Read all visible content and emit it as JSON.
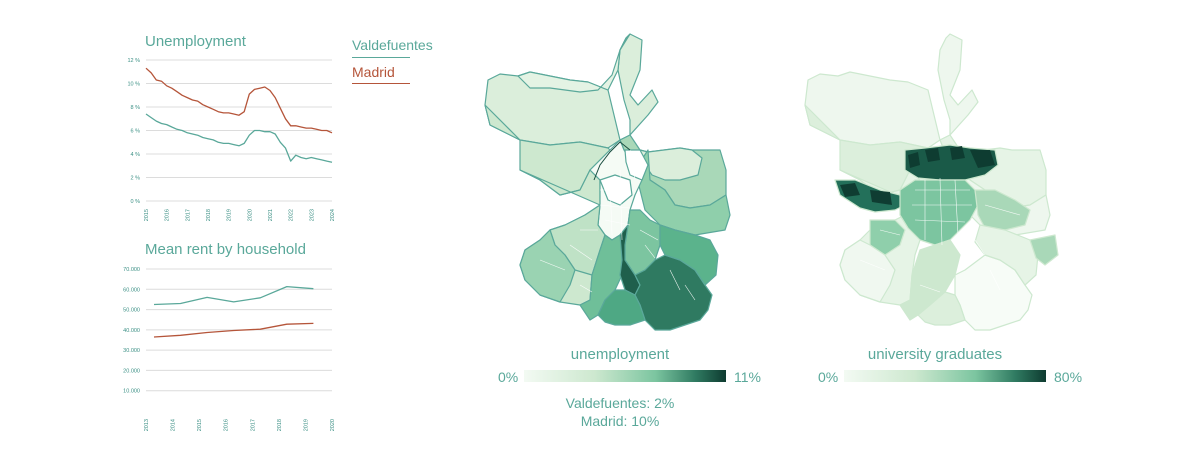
{
  "legend": {
    "entries": [
      {
        "label": "Valdefuentes",
        "color": "#5aa89a"
      },
      {
        "label": "Madrid",
        "color": "#b5553a"
      }
    ]
  },
  "chart_data": [
    {
      "type": "line",
      "title": "Unemployment",
      "x_ticks": [
        "2015",
        "2016",
        "2017",
        "2018",
        "2019",
        "2020",
        "2021",
        "2022",
        "2023",
        "2024"
      ],
      "y_ticks": [
        "0 %",
        "2 %",
        "4 %",
        "6 %",
        "8 %",
        "10 %",
        "12 %"
      ],
      "ylim": [
        0,
        12
      ],
      "xlim": [
        2015,
        2024
      ],
      "grid": true,
      "series": [
        {
          "name": "Valdefuentes",
          "color": "#5aa89a",
          "x": [
            2015,
            2015.25,
            2015.5,
            2015.75,
            2016,
            2016.25,
            2016.5,
            2016.75,
            2017,
            2017.25,
            2017.5,
            2017.75,
            2018,
            2018.25,
            2018.5,
            2018.75,
            2019,
            2019.25,
            2019.5,
            2019.75,
            2020,
            2020.25,
            2020.5,
            2020.75,
            2021,
            2021.25,
            2021.5,
            2021.75,
            2022,
            2022.25,
            2022.5,
            2022.75,
            2023,
            2023.25,
            2023.5,
            2023.75,
            2024
          ],
          "y": [
            7.4,
            7.1,
            6.8,
            6.6,
            6.5,
            6.3,
            6.1,
            6.0,
            5.8,
            5.7,
            5.6,
            5.4,
            5.3,
            5.2,
            5.0,
            4.9,
            4.9,
            4.8,
            4.7,
            4.9,
            5.6,
            6.0,
            6.0,
            5.9,
            5.9,
            5.7,
            5.0,
            4.5,
            3.4,
            3.9,
            3.7,
            3.6,
            3.7,
            3.6,
            3.5,
            3.4,
            3.3
          ]
        },
        {
          "name": "Madrid",
          "color": "#b5553a",
          "x": [
            2015,
            2015.25,
            2015.5,
            2015.75,
            2016,
            2016.25,
            2016.5,
            2016.75,
            2017,
            2017.25,
            2017.5,
            2017.75,
            2018,
            2018.25,
            2018.5,
            2018.75,
            2019,
            2019.25,
            2019.5,
            2019.75,
            2020,
            2020.25,
            2020.5,
            2020.75,
            2021,
            2021.25,
            2021.5,
            2021.75,
            2022,
            2022.25,
            2022.5,
            2022.75,
            2023,
            2023.25,
            2023.5,
            2023.75,
            2024
          ],
          "y": [
            11.3,
            10.9,
            10.3,
            10.2,
            9.8,
            9.6,
            9.3,
            9.0,
            8.8,
            8.6,
            8.5,
            8.2,
            8.0,
            7.8,
            7.6,
            7.5,
            7.5,
            7.4,
            7.3,
            7.6,
            9.1,
            9.5,
            9.6,
            9.7,
            9.4,
            8.8,
            7.9,
            7.0,
            6.4,
            6.4,
            6.3,
            6.2,
            6.2,
            6.1,
            6.0,
            6.0,
            5.8
          ]
        }
      ]
    },
    {
      "type": "line",
      "title": "Mean rent by household",
      "x_ticks": [
        "2013",
        "2014",
        "2015",
        "2016",
        "2017",
        "2018",
        "2019",
        "2020"
      ],
      "y_ticks": [
        "10.000",
        "20.000",
        "30.000",
        "40.000",
        "50.000",
        "60.000",
        "70.000"
      ],
      "ylim": [
        0,
        70000
      ],
      "xlim": [
        2013,
        2020
      ],
      "grid": true,
      "series": [
        {
          "name": "Valdefuentes",
          "color": "#5aa89a",
          "x": [
            2013.3,
            2014.3,
            2015.3,
            2016.3,
            2017.3,
            2018.3,
            2019.3
          ],
          "y": [
            52500,
            53000,
            56000,
            53800,
            55800,
            61300,
            60300
          ]
        },
        {
          "name": "Madrid",
          "color": "#b5553a",
          "x": [
            2013.3,
            2014.3,
            2015.3,
            2016.3,
            2017.3,
            2018.3,
            2019.3
          ],
          "y": [
            36500,
            37300,
            38700,
            39700,
            40300,
            42800,
            43200
          ]
        }
      ]
    }
  ],
  "maps": [
    {
      "label": "unemployment",
      "scale_min": "0%",
      "scale_max": "11%",
      "stats": [
        "Valdefuentes: 2%",
        "Madrid: 10%"
      ]
    },
    {
      "label": "university graduates",
      "scale_min": "0%",
      "scale_max": "80%"
    }
  ],
  "colors": {
    "teal": "#5aa89a",
    "rust": "#b5553a",
    "ramp_light": "#f3faf3",
    "ramp_dark": "#0e3b30"
  }
}
